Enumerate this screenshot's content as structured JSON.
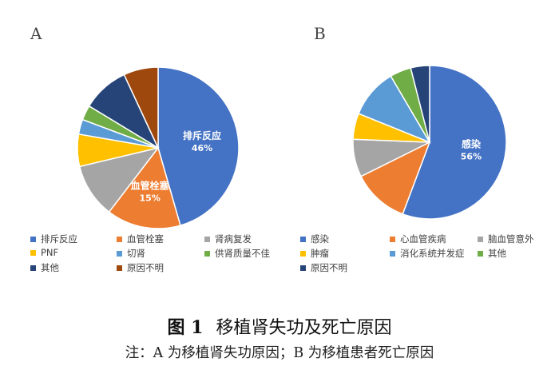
{
  "chart_data": [
    {
      "type": "pie",
      "panel": "A",
      "categories": [
        "排斥反应",
        "血管栓塞",
        "肾病复发",
        "PNF",
        "切肾",
        "供肾质量不佳",
        "其他",
        "原因不明"
      ],
      "values": [
        46,
        15,
        11,
        6.5,
        3,
        3,
        9.5,
        7
      ],
      "colors": [
        "#4472C4",
        "#ED7D31",
        "#A5A5A5",
        "#FFC000",
        "#5B9BD5",
        "#70AD47",
        "#264478",
        "#9E480E"
      ],
      "data_labels": [
        {
          "index": 0,
          "name": "排斥反应",
          "value": "46%"
        },
        {
          "index": 1,
          "name": "血管栓塞",
          "value": "15%"
        }
      ],
      "legend_position": "bottom"
    },
    {
      "type": "pie",
      "panel": "B",
      "categories": [
        "感染",
        "心血管疾病",
        "脑血管意外",
        "肿瘤",
        "消化系统并发症",
        "其他",
        "原因不明"
      ],
      "values": [
        56,
        12,
        8,
        5.5,
        10.5,
        4.5,
        4
      ],
      "colors": [
        "#4472C4",
        "#ED7D31",
        "#A5A5A5",
        "#FFC000",
        "#5B9BD5",
        "#70AD47",
        "#264478"
      ],
      "data_labels": [
        {
          "index": 0,
          "name": "感染",
          "value": "56%"
        }
      ],
      "legend_position": "bottom"
    }
  ],
  "figure": {
    "title_num": "图 1",
    "title_text": "移植肾失功及死亡原因",
    "note": "注：A 为移植肾失功原因；B 为移植患者死亡原因"
  }
}
